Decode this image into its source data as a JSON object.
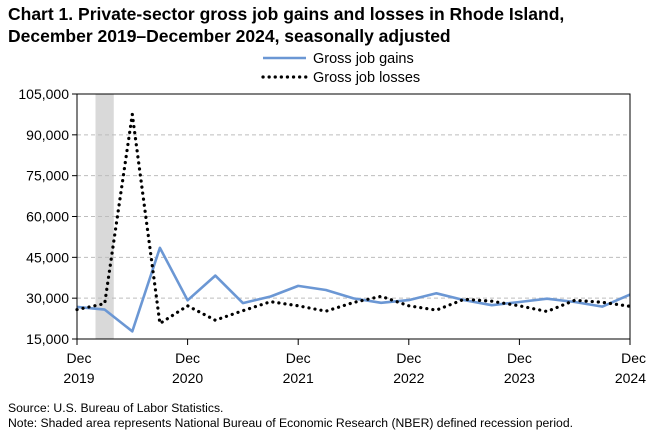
{
  "chart_data": {
    "type": "line",
    "title": "Chart 1. Private-sector gross job gains and losses in Rhode Island,",
    "subtitle": "December 2019–December 2024, seasonally adjusted",
    "xlabel": "",
    "ylabel": "",
    "ylim": [
      15000,
      105000
    ],
    "yticks": [
      "105,000",
      "90,000",
      "75,000",
      "60,000",
      "45,000",
      "30,000",
      "15,000"
    ],
    "ytick_values": [
      105000,
      90000,
      75000,
      60000,
      45000,
      30000,
      15000
    ],
    "x": [
      "Dec 2019",
      "Mar 2020",
      "Jun 2020",
      "Sep 2020",
      "Dec 2020",
      "Mar 2021",
      "Jun 2021",
      "Sep 2021",
      "Dec 2021",
      "Mar 2022",
      "Jun 2022",
      "Sep 2022",
      "Dec 2022",
      "Mar 2023",
      "Jun 2023",
      "Sep 2023",
      "Dec 2023",
      "Mar 2024",
      "Jun 2024",
      "Sep 2024",
      "Dec 2024"
    ],
    "xticks": [
      {
        "month": "Dec",
        "year": "2019",
        "index": 0
      },
      {
        "month": "Dec",
        "year": "2020",
        "index": 4
      },
      {
        "month": "Dec",
        "year": "2021",
        "index": 8
      },
      {
        "month": "Dec",
        "year": "2022",
        "index": 12
      },
      {
        "month": "Dec",
        "year": "2023",
        "index": 16
      },
      {
        "month": "Dec",
        "year": "2024",
        "index": 20
      }
    ],
    "recession": {
      "start": "Feb 2020",
      "end": "Apr 2020",
      "start_index": 0.67,
      "end_index": 1.33,
      "color": "#d9d9d9"
    },
    "series": [
      {
        "name": "Gross job gains",
        "color": "#6b97d4",
        "style": "solid",
        "values": [
          26800,
          25800,
          17800,
          48500,
          29200,
          38300,
          28200,
          30600,
          34500,
          33000,
          29900,
          28300,
          29300,
          31800,
          29300,
          27400,
          28600,
          29800,
          28600,
          26900,
          31300
        ]
      },
      {
        "name": "Gross job losses",
        "color": "#000000",
        "style": "dotted",
        "values": [
          25800,
          28000,
          97500,
          20700,
          27200,
          21900,
          25400,
          28700,
          27200,
          25200,
          28400,
          30700,
          27200,
          25600,
          29600,
          28900,
          27200,
          25100,
          29200,
          28500,
          27000
        ]
      }
    ],
    "legend_position": "top-center",
    "grid": {
      "y": true,
      "style": "dashed",
      "color": "#bdbdbd"
    }
  },
  "notes": {
    "source": "Source: U.S. Bureau of Labor Statistics.",
    "note": "Note: Shaded area represents National Bureau of Economic Research (NBER) defined recession period."
  }
}
